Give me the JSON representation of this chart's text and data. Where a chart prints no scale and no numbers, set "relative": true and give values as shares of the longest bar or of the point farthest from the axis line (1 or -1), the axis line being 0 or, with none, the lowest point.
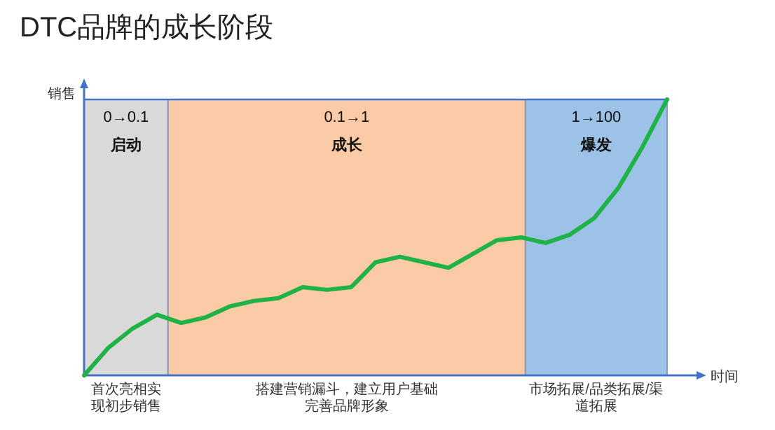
{
  "chart_data": {
    "type": "line",
    "title": "DTC品牌的成长阶段",
    "xlabel": "时间",
    "ylabel": "销售",
    "relative": true,
    "line_style": "solid",
    "categories": [
      null,
      null,
      null,
      null,
      null,
      null,
      null,
      null,
      null,
      null,
      null,
      null,
      null,
      null,
      null,
      null,
      null,
      null,
      null,
      null,
      null,
      null,
      null,
      null,
      null
    ],
    "series": [
      {
        "color": "#1fb246",
        "values": [
          0,
          0.1,
          0.17,
          0.22,
          0.19,
          0.21,
          0.25,
          0.27,
          0.28,
          0.32,
          0.31,
          0.32,
          0.41,
          0.43,
          0.41,
          0.39,
          0.44,
          0.49,
          0.5,
          0.48,
          0.51,
          0.57,
          0.68,
          0.83,
          1.0
        ]
      }
    ],
    "annotations": [
      "0→0.1",
      "0.1→1",
      "1→100",
      "启动",
      "成长",
      "爆发",
      "首次亮相实现初步销售",
      "搭建营销漏斗，建立用户基础完善品牌形象",
      "市场拓展/品类拓展/渠道拓展"
    ]
  }
}
